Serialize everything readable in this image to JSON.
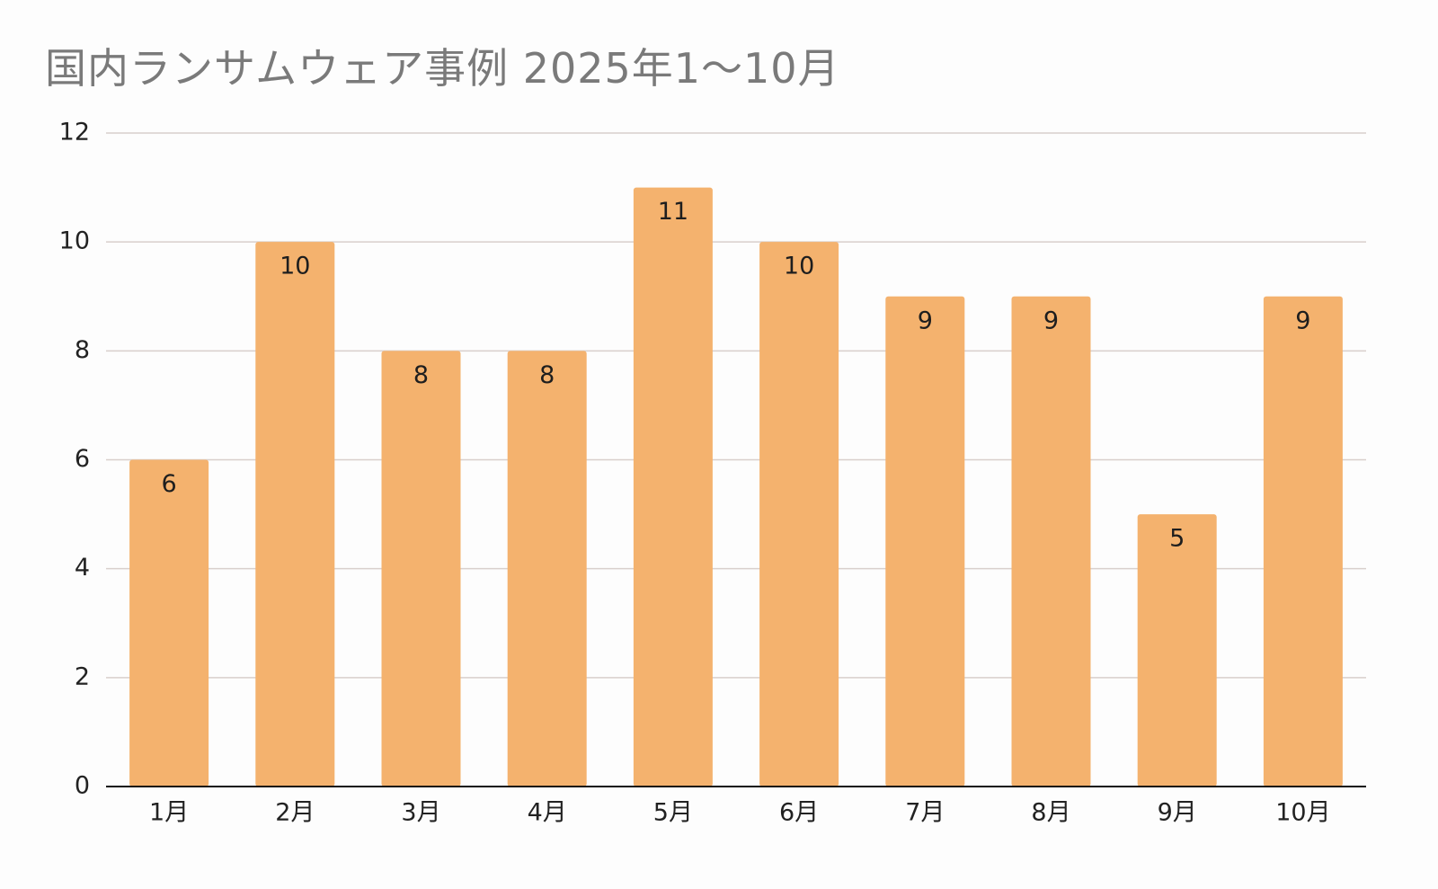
{
  "chart_data": {
    "type": "bar",
    "title": "国内ランサムウェア事例 2025年1〜10月",
    "categories": [
      "1月",
      "2月",
      "3月",
      "4月",
      "5月",
      "6月",
      "7月",
      "8月",
      "9月",
      "10月"
    ],
    "values": [
      6,
      10,
      8,
      8,
      11,
      10,
      9,
      9,
      5,
      9
    ],
    "ylim": [
      0,
      12
    ],
    "yticks": [
      0,
      2,
      4,
      6,
      8,
      10,
      12
    ],
    "grid": true,
    "legend": "none",
    "data_labels": true,
    "colors": {
      "bar": "#f4b26e",
      "grid": "#d8cfcc",
      "axis": "#111111",
      "title": "#7a7a7a"
    }
  }
}
